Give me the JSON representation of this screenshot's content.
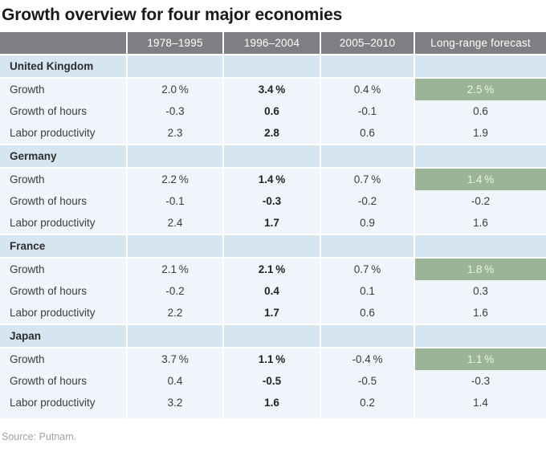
{
  "title": "Growth overview for four major economies",
  "source": "Source: Putnam.",
  "colors": {
    "header_bg": "#7d7f82",
    "header_text": "#ffffff",
    "section_bg": "#d5e6f1",
    "body_bg": "#eff5fa",
    "forecast_bg": "#9bb496",
    "forecast_text": "#edf2ea"
  },
  "table": {
    "columns": [
      "",
      "1978–1995",
      "1996–2004",
      "2005–2010",
      "Long-range forecast"
    ],
    "sections": [
      {
        "country": "United Kingdom",
        "rows": [
          {
            "label": "Growth",
            "values": [
              "2.0 %",
              "3.4 %",
              "0.4 %"
            ],
            "forecast": "2.5 %"
          },
          {
            "label": "Growth of hours",
            "values": [
              "-0.3",
              "0.6",
              "-0.1"
            ],
            "forecast": "0.6"
          },
          {
            "label": "Labor productivity",
            "values": [
              "2.3",
              "2.8",
              "0.6"
            ],
            "forecast": "1.9"
          }
        ]
      },
      {
        "country": "Germany",
        "rows": [
          {
            "label": "Growth",
            "values": [
              "2.2 %",
              "1.4 %",
              "0.7 %"
            ],
            "forecast": "1.4 %"
          },
          {
            "label": "Growth of hours",
            "values": [
              "-0.1",
              "-0.3",
              "-0.2"
            ],
            "forecast": "-0.2"
          },
          {
            "label": "Labor productivity",
            "values": [
              "2.4",
              "1.7",
              "0.9"
            ],
            "forecast": "1.6"
          }
        ]
      },
      {
        "country": "France",
        "rows": [
          {
            "label": "Growth",
            "values": [
              "2.1 %",
              "2.1 %",
              "0.7 %"
            ],
            "forecast": "1.8 %"
          },
          {
            "label": "Growth of hours",
            "values": [
              "-0.2",
              "0.4",
              "0.1"
            ],
            "forecast": "0.3"
          },
          {
            "label": "Labor productivity",
            "values": [
              "2.2",
              "1.7",
              "0.6"
            ],
            "forecast": "1.6"
          }
        ]
      },
      {
        "country": "Japan",
        "rows": [
          {
            "label": "Growth",
            "values": [
              "3.7 %",
              "1.1 %",
              "-0.4 %"
            ],
            "forecast": "1.1 %"
          },
          {
            "label": "Growth of hours",
            "values": [
              "0.4",
              "-0.5",
              "-0.5"
            ],
            "forecast": "-0.3"
          },
          {
            "label": "Labor productivity",
            "values": [
              "3.2",
              "1.6",
              "0.2"
            ],
            "forecast": "1.4"
          }
        ]
      }
    ]
  },
  "chart_data": {
    "type": "table",
    "title": "Growth overview for four major economies",
    "columns": [
      "",
      "1978–1995",
      "1996–2004",
      "2005–2010",
      "Long-range forecast"
    ],
    "highlight_column": "1996–2004",
    "forecast_highlight": "Growth rows, Long-range forecast column (green cells)",
    "sections": [
      {
        "name": "United Kingdom",
        "rows": [
          [
            "Growth",
            2.0,
            3.4,
            0.4,
            2.5
          ],
          [
            "Growth of hours",
            -0.3,
            0.6,
            -0.1,
            0.6
          ],
          [
            "Labor productivity",
            2.3,
            2.8,
            0.6,
            1.9
          ]
        ]
      },
      {
        "name": "Germany",
        "rows": [
          [
            "Growth",
            2.2,
            1.4,
            0.7,
            1.4
          ],
          [
            "Growth of hours",
            -0.1,
            -0.3,
            -0.2,
            -0.2
          ],
          [
            "Labor productivity",
            2.4,
            1.7,
            0.9,
            1.6
          ]
        ]
      },
      {
        "name": "France",
        "rows": [
          [
            "Growth",
            2.1,
            2.1,
            0.7,
            1.8
          ],
          [
            "Growth of hours",
            -0.2,
            0.4,
            0.1,
            0.3
          ],
          [
            "Labor productivity",
            2.2,
            1.7,
            0.6,
            1.6
          ]
        ]
      },
      {
        "name": "Japan",
        "rows": [
          [
            "Growth",
            3.7,
            1.1,
            -0.4,
            1.1
          ],
          [
            "Growth of hours",
            0.4,
            -0.5,
            -0.5,
            -0.3
          ],
          [
            "Labor productivity",
            3.2,
            1.6,
            0.2,
            1.4
          ]
        ]
      }
    ],
    "source": "Source: Putnam."
  }
}
